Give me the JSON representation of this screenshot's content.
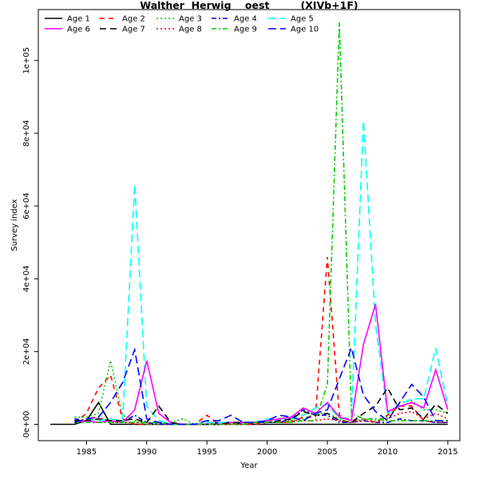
{
  "chart_data": {
    "type": "line",
    "title": "Walther  Herwig    oest         (XIVb+1F)",
    "xlabel": "Year",
    "ylabel": "Survey index",
    "xlim": [
      1981,
      2016
    ],
    "ylim": [
      -4500,
      114000
    ],
    "x_ticks": [
      1985,
      1990,
      1995,
      2000,
      2005,
      2010,
      2015
    ],
    "y_ticks": [
      0,
      20000,
      40000,
      60000,
      80000,
      100000
    ],
    "y_tick_labels": [
      "0e+00",
      "2e+04",
      "4e+04",
      "6e+04",
      "8e+04",
      "1e+05"
    ],
    "grid": false,
    "legend_position": "top-left",
    "series": [
      {
        "name": "Age 1",
        "color": "#000000",
        "dash": "solid",
        "x": [
          1982,
          1983,
          1984,
          1985,
          1986,
          1987,
          1988,
          1989,
          1990,
          1991,
          1992,
          1993,
          1994,
          1995,
          1996,
          1997,
          1998,
          1999,
          2000,
          2001,
          2002,
          2003,
          2004,
          2005,
          2006,
          2007,
          2008,
          2009,
          2010,
          2011,
          2012,
          2013,
          2014,
          2015
        ],
        "y": [
          0,
          0,
          0,
          1000,
          6000,
          0,
          0,
          0,
          0,
          0,
          0,
          0,
          0,
          0,
          0,
          0,
          0,
          0,
          0,
          0,
          0,
          0,
          0,
          0,
          0,
          0,
          0,
          0,
          0,
          0,
          0,
          0,
          0,
          0
        ]
      },
      {
        "name": "Age 2",
        "color": "#ff0000",
        "dash": "6,5",
        "x": [
          1984,
          1985,
          1986,
          1987,
          1988,
          1989,
          1990,
          1991,
          1992,
          1993,
          1994,
          1995,
          1996,
          1997,
          1998,
          1999,
          2000,
          2001,
          2002,
          2003,
          2004,
          2005,
          2006,
          2007,
          2008,
          2009,
          2010,
          2011,
          2012,
          2013,
          2014,
          2015
        ],
        "y": [
          500,
          3000,
          10000,
          13500,
          1500,
          0,
          0,
          0,
          0,
          0,
          0,
          2500,
          0,
          0,
          0,
          0,
          500,
          500,
          500,
          2000,
          2000,
          46000,
          2500,
          1000,
          1500,
          500,
          2500,
          5000,
          5000,
          1000,
          500,
          500
        ]
      },
      {
        "name": "Age 3",
        "color": "#00cd00",
        "dash": "2,3",
        "x": [
          1984,
          1985,
          1986,
          1987,
          1988,
          1989,
          1990,
          1991,
          1992,
          1993,
          1994,
          1995,
          1996,
          1997,
          1998,
          1999,
          2000,
          2001,
          2002,
          2003,
          2004,
          2005,
          2006,
          2007,
          2008,
          2009,
          2010,
          2011,
          2012,
          2013,
          2014,
          2015
        ],
        "y": [
          2000,
          2000,
          3000,
          17500,
          2500,
          1000,
          0,
          0,
          500,
          1500,
          0,
          1000,
          0,
          0,
          500,
          500,
          1000,
          500,
          1000,
          1500,
          3000,
          3000,
          1500,
          500,
          1500,
          1000,
          2000,
          6000,
          6500,
          4000,
          4000,
          3000
        ]
      },
      {
        "name": "Age 4",
        "color": "#0000cd",
        "dash": "6,3,2,3",
        "x": [
          1984,
          1985,
          1986,
          1987,
          1988,
          1989,
          1990,
          1991,
          1992,
          1993,
          1994,
          1995,
          1996,
          1997,
          1998,
          1999,
          2000,
          2001,
          2002,
          2003,
          2004,
          2005,
          2006,
          2007,
          2008,
          2009,
          2010,
          2011,
          2012,
          2013,
          2014,
          2015
        ],
        "y": [
          1500,
          1000,
          500,
          1000,
          500,
          2500,
          500,
          0,
          0,
          0,
          0,
          0,
          500,
          500,
          0,
          500,
          500,
          500,
          1500,
          4000,
          2500,
          2500,
          500,
          500,
          1000,
          500,
          500,
          1500,
          1000,
          1000,
          500,
          500
        ]
      },
      {
        "name": "Age 5",
        "color": "#00ffff",
        "dash": "10,5",
        "x": [
          1984,
          1985,
          1986,
          1987,
          1988,
          1989,
          1990,
          1991,
          1992,
          1993,
          1994,
          1995,
          1996,
          1997,
          1998,
          1999,
          2000,
          2001,
          2002,
          2003,
          2004,
          2005,
          2006,
          2007,
          2008,
          2009,
          2010,
          2011,
          2012,
          2013,
          2014,
          2015
        ],
        "y": [
          500,
          1500,
          1000,
          1500,
          1000,
          66000,
          5000,
          1000,
          0,
          0,
          0,
          500,
          500,
          500,
          500,
          500,
          1500,
          1500,
          1500,
          2500,
          4500,
          5500,
          1500,
          2000,
          83500,
          27500,
          3000,
          5500,
          7000,
          7000,
          21000,
          5000
        ]
      },
      {
        "name": "Age 6",
        "color": "#ff00ff",
        "dash": "solid",
        "x": [
          1984,
          1985,
          1986,
          1987,
          1988,
          1989,
          1990,
          1991,
          1992,
          1993,
          1994,
          1995,
          1996,
          1997,
          1998,
          1999,
          2000,
          2001,
          2002,
          2003,
          2004,
          2005,
          2006,
          2007,
          2008,
          2009,
          2010,
          2011,
          2012,
          2013,
          2014,
          2015
        ],
        "y": [
          500,
          1000,
          500,
          1000,
          500,
          4000,
          17500,
          3000,
          500,
          0,
          0,
          0,
          0,
          500,
          500,
          500,
          1000,
          1500,
          2000,
          4500,
          3000,
          6000,
          2000,
          1000,
          22000,
          33000,
          3500,
          5000,
          6000,
          4500,
          15000,
          4000
        ]
      },
      {
        "name": "Age 7",
        "color": "#000000",
        "dash": "8,5",
        "x": [
          1984,
          1985,
          1986,
          1987,
          1988,
          1989,
          1990,
          1991,
          1992,
          1993,
          1994,
          1995,
          1996,
          1997,
          1998,
          1999,
          2000,
          2001,
          2002,
          2003,
          2004,
          2005,
          2006,
          2007,
          2008,
          2009,
          2010,
          2011,
          2012,
          2013,
          2014,
          2015
        ],
        "y": [
          1000,
          1000,
          1500,
          1000,
          1000,
          1500,
          500,
          5000,
          500,
          0,
          0,
          0,
          0,
          500,
          500,
          500,
          500,
          1000,
          1500,
          3500,
          2500,
          3000,
          1000,
          500,
          3000,
          5000,
          10000,
          4000,
          4500,
          1500,
          5500,
          3000
        ]
      },
      {
        "name": "Age 8",
        "color": "#ff0000",
        "dash": "2,3",
        "x": [
          1984,
          1985,
          1986,
          1987,
          1988,
          1989,
          1990,
          1991,
          1992,
          1993,
          1994,
          1995,
          1996,
          1997,
          1998,
          1999,
          2000,
          2001,
          2002,
          2003,
          2004,
          2005,
          2006,
          2007,
          2008,
          2009,
          2010,
          2011,
          2012,
          2013,
          2014,
          2015
        ],
        "y": [
          500,
          1500,
          2000,
          500,
          500,
          500,
          500,
          500,
          0,
          0,
          0,
          0,
          0,
          0,
          0,
          500,
          500,
          500,
          1000,
          1000,
          1000,
          1500,
          1000,
          500,
          1000,
          500,
          1500,
          3000,
          3500,
          1500,
          3000,
          1500
        ]
      },
      {
        "name": "Age 9",
        "color": "#00cd00",
        "dash": "6,3,2,3",
        "x": [
          1984,
          1985,
          1986,
          1987,
          1988,
          1989,
          1990,
          1991,
          1992,
          1993,
          1994,
          1995,
          1996,
          1997,
          1998,
          1999,
          2000,
          2001,
          2002,
          2003,
          2004,
          2005,
          2006,
          2007,
          2008,
          2009,
          2010,
          2011,
          2012,
          2013,
          2014,
          2015
        ],
        "y": [
          500,
          500,
          500,
          500,
          500,
          500,
          500,
          500,
          0,
          0,
          0,
          0,
          0,
          0,
          0,
          500,
          500,
          500,
          500,
          1000,
          1000,
          11000,
          110500,
          3000,
          1500,
          1500,
          1000,
          1000,
          1000,
          1000,
          1000,
          1000
        ]
      },
      {
        "name": "Age 10",
        "color": "#0000ff",
        "dash": "10,5",
        "x": [
          1984,
          1985,
          1986,
          1987,
          1988,
          1989,
          1990,
          1991,
          1992,
          1993,
          1994,
          1995,
          1996,
          1997,
          1998,
          1999,
          2000,
          2001,
          2002,
          2003,
          2004,
          2005,
          2006,
          2007,
          2008,
          2009,
          2010,
          2011,
          2012,
          2013,
          2014,
          2015
        ],
        "y": [
          500,
          1500,
          2000,
          6000,
          11500,
          20500,
          1500,
          500,
          0,
          0,
          0,
          1000,
          1000,
          2500,
          500,
          500,
          1000,
          2500,
          2000,
          1000,
          3000,
          4000,
          12500,
          21000,
          8000,
          3500,
          1000,
          6000,
          11000,
          7500,
          1000,
          1000
        ]
      }
    ]
  }
}
